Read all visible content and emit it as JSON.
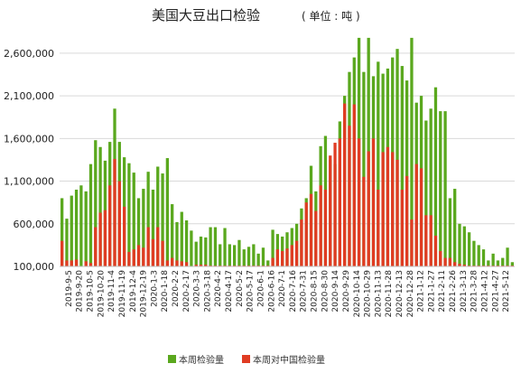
{
  "chart_data": {
    "type": "bar",
    "title": "美国大豆出口检验",
    "subtitle": "( 单位 : 吨 )",
    "xlabel": "",
    "ylabel": "",
    "ylim": [
      100000,
      2800000
    ],
    "yticks": [
      100000,
      600000,
      1100000,
      1600000,
      2100000,
      2600000
    ],
    "ytick_labels": [
      "100,000",
      "600,000",
      "1,100,000",
      "1,600,000",
      "2,100,000",
      "2,600,000"
    ],
    "grid": true,
    "legend_position": "bottom",
    "colors": {
      "total": "#5aa81e",
      "china": "#e03c23"
    },
    "x_tick_labels": [
      "2019-9-5",
      "2019-9-20",
      "2019-10-5",
      "2019-10-20",
      "2019-11-4",
      "2019-11-19",
      "2019-12-4",
      "2019-12-19",
      "2020-1-3",
      "2020-1-18",
      "2020-2-2",
      "2020-2-17",
      "2020-3-3",
      "2020-3-18",
      "2020-4-2",
      "2020-4-17",
      "2020-5-2",
      "2020-5-17",
      "2020-6-1",
      "2020-6-16",
      "2020-7-1",
      "2020-7-16",
      "2020-7-31",
      "2020-8-15",
      "2020-8-30",
      "2020-9-14",
      "2020-9-29",
      "2020-10-14",
      "2020-10-29",
      "2020-11-13",
      "2020-11-28",
      "2020-12-13",
      "2020-12-28",
      "2021-1-12",
      "2021-1-27",
      "2021-2-11",
      "2021-2-26",
      "2021-3-13",
      "2021-3-28",
      "2021-4-12",
      "2021-4-27",
      "2021-5-12"
    ],
    "series": [
      {
        "name": "本周检验量",
        "key": "total",
        "values": [
          900000,
          660000,
          930000,
          1000000,
          1050000,
          980000,
          1300000,
          1580000,
          1500000,
          1340000,
          1560000,
          1950000,
          1560000,
          1380000,
          1310000,
          1200000,
          900000,
          1010000,
          1210000,
          1000000,
          1270000,
          1190000,
          1370000,
          830000,
          620000,
          740000,
          640000,
          520000,
          390000,
          450000,
          440000,
          560000,
          560000,
          360000,
          550000,
          360000,
          350000,
          410000,
          300000,
          330000,
          360000,
          250000,
          320000,
          170000,
          530000,
          480000,
          450000,
          500000,
          550000,
          600000,
          780000,
          900000,
          1280000,
          980000,
          1510000,
          1630000,
          1350000,
          1300000,
          1800000,
          2100000,
          2380000,
          2550000,
          2780000,
          2380000,
          2780000,
          2330000,
          2500000,
          2360000,
          2420000,
          2550000,
          2650000,
          2450000,
          2280000,
          2780000,
          2020000,
          2100000,
          1810000,
          1950000,
          2200000,
          1920000,
          1920000,
          900000,
          1010000,
          600000,
          570000,
          500000,
          400000,
          350000,
          300000,
          170000,
          250000,
          170000,
          200000,
          320000,
          150000
        ],
        "note": ""
      },
      {
        "name": "本周对中国检验量",
        "key": "china",
        "values": [
          400000,
          170000,
          170000,
          180000,
          100000,
          160000,
          140000,
          560000,
          730000,
          760000,
          1050000,
          1360000,
          1100000,
          800000,
          270000,
          300000,
          350000,
          320000,
          560000,
          420000,
          560000,
          400000,
          170000,
          200000,
          170000,
          160000,
          150000,
          100000,
          120000,
          120000,
          120000,
          110000,
          110000,
          110000,
          110000,
          110000,
          110000,
          110000,
          110000,
          110000,
          110000,
          110000,
          110000,
          110000,
          200000,
          300000,
          280000,
          310000,
          350000,
          400000,
          650000,
          850000,
          950000,
          750000,
          1050000,
          1000000,
          1400000,
          1550000,
          1600000,
          2010000,
          1750000,
          2000000,
          1600000,
          1150000,
          1450000,
          1600000,
          1000000,
          1440000,
          1500000,
          1440000,
          1350000,
          1000000,
          1160000,
          650000,
          1300000,
          1250000,
          700000,
          700000,
          460000,
          280000,
          200000,
          200000,
          150000,
          130000,
          120000,
          110000,
          110000,
          110000,
          110000,
          110000,
          110000,
          110000,
          110000,
          110000,
          110000
        ]
      }
    ]
  }
}
